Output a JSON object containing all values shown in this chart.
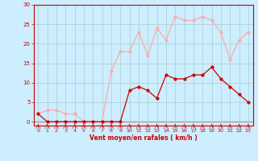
{
  "hours": [
    0,
    1,
    2,
    3,
    4,
    5,
    6,
    7,
    8,
    9,
    10,
    11,
    12,
    13,
    14,
    15,
    16,
    17,
    18,
    19,
    20,
    21,
    22,
    23
  ],
  "vent_moyen": [
    2,
    0,
    0,
    0,
    0,
    0,
    0,
    0,
    0,
    0,
    8,
    9,
    8,
    6,
    12,
    11,
    11,
    12,
    12,
    14,
    11,
    9,
    7,
    5
  ],
  "rafales": [
    2,
    3,
    3,
    2,
    2,
    0,
    0,
    0,
    13,
    18,
    18,
    23,
    17,
    24,
    21,
    27,
    26,
    26,
    27,
    26,
    23,
    16,
    21,
    23
  ],
  "color_moyen": "#cc0000",
  "color_rafales": "#ffaaaa",
  "bg_color": "#cceeff",
  "grid_color": "#aacccc",
  "xlabel": "Vent moyen/en rafales ( km/h )",
  "yticks": [
    0,
    5,
    10,
    15,
    20,
    25,
    30
  ],
  "xlim": [
    -0.5,
    23.5
  ],
  "ylim": [
    -1,
    30
  ],
  "tick_color": "#cc0000",
  "label_color": "#cc0000"
}
